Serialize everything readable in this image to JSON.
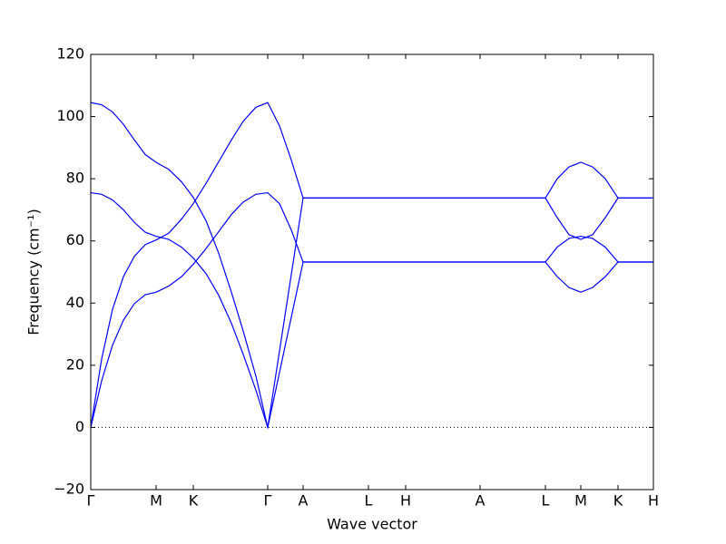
{
  "chart_data": {
    "type": "line",
    "xlabel": "Wave vector",
    "ylabel": "Frequency (cm⁻¹)",
    "xlim": [
      0,
      6.2
    ],
    "ylim": [
      -20,
      120
    ],
    "xticks": [
      {
        "value": 0,
        "label": "Γ"
      },
      {
        "value": 0.72,
        "label": "M"
      },
      {
        "value": 1.13,
        "label": "K"
      },
      {
        "value": 1.95,
        "label": "Γ"
      },
      {
        "value": 2.34,
        "label": "A"
      },
      {
        "value": 3.06,
        "label": "L"
      },
      {
        "value": 3.47,
        "label": "H"
      },
      {
        "value": 4.29,
        "label": "A"
      },
      {
        "value": 5.01,
        "label": "L"
      },
      {
        "value": 5.4,
        "label": "M"
      },
      {
        "value": 5.81,
        "label": "K"
      },
      {
        "value": 6.2,
        "label": "H"
      }
    ],
    "yticks": [
      {
        "value": -20,
        "label": "−20"
      },
      0,
      20,
      40,
      60,
      80,
      100,
      120
    ],
    "hline": 0,
    "x": [
      0,
      0.12,
      0.24,
      0.36,
      0.48,
      0.6,
      0.72,
      0.86,
      1.0,
      1.13,
      1.27,
      1.41,
      1.55,
      1.68,
      1.82,
      1.95,
      2.08,
      2.21,
      2.34,
      3.06,
      3.47,
      4.29,
      5.01,
      5.14,
      5.27,
      5.4,
      5.53,
      5.67,
      5.81,
      6.2
    ],
    "series": [
      {
        "color": "#0000ff",
        "values": [
          104.5,
          103.8,
          101.5,
          97.5,
          92.5,
          87.8,
          85.3,
          83.0,
          79.0,
          74.0,
          66.5,
          56.0,
          43.5,
          31.0,
          16.5,
          0,
          24.6,
          49.2,
          73.8,
          73.8,
          73.8,
          73.8,
          73.8,
          80.0,
          83.8,
          85.3,
          83.8,
          80.0,
          73.8,
          73.8
        ]
      },
      {
        "color": "#0000ff",
        "values": [
          75.5,
          75.0,
          73.2,
          70.0,
          66.0,
          62.8,
          61.5,
          60.5,
          58.0,
          54.5,
          49.5,
          42.5,
          33.5,
          23.5,
          12.0,
          0,
          17.7,
          35.5,
          53.2,
          53.2,
          53.2,
          53.2,
          53.2,
          58.0,
          60.8,
          61.5,
          60.8,
          58.0,
          53.2,
          53.2
        ]
      },
      {
        "color": "#0000ff",
        "values": [
          0,
          22.0,
          38.0,
          48.5,
          55.0,
          58.8,
          60.3,
          62.5,
          67.0,
          72.0,
          78.5,
          85.5,
          92.5,
          98.5,
          103.0,
          104.5,
          97.0,
          86.0,
          73.8,
          73.8,
          73.8,
          73.8,
          73.8,
          67.5,
          62.0,
          60.5,
          62.0,
          67.5,
          73.8,
          73.8
        ]
      },
      {
        "color": "#0000ff",
        "values": [
          0,
          15.0,
          26.5,
          34.5,
          39.8,
          42.7,
          43.5,
          45.5,
          48.5,
          52.5,
          57.5,
          63.0,
          68.5,
          72.5,
          75.0,
          75.5,
          72.0,
          63.5,
          53.2,
          53.2,
          53.2,
          53.2,
          53.2,
          48.5,
          45.0,
          43.5,
          45.0,
          48.5,
          53.2,
          53.2
        ]
      }
    ]
  }
}
